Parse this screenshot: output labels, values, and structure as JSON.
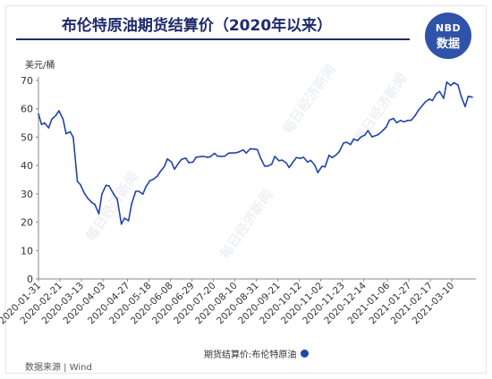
{
  "header": {
    "title": "布伦特原油期货结算价（2020年以来）",
    "logo_top": "NBD",
    "logo_bottom": "数据"
  },
  "unit": "美元/桶",
  "source": "数据来源 | Wind",
  "watermark": "每日经济新闻",
  "colors": {
    "line": "#2244aa",
    "title": "#1e2a6d",
    "logo": "#2f53a8"
  },
  "chart_data": {
    "type": "line",
    "title": "布伦特原油期货结算价（2020年以来）",
    "ylabel": "美元/桶",
    "ylim": [
      0,
      70
    ],
    "yticks": [
      0,
      10,
      20,
      30,
      40,
      50,
      60,
      70
    ],
    "legend": "bottom",
    "grid": false,
    "xtick_labels": [
      "2020-01-31",
      "2020-02-21",
      "2020-03-13",
      "2020-04-03",
      "2020-04-27",
      "2020-05-18",
      "2020-06-08",
      "2020-06-29",
      "2020-07-20",
      "2020-08-10",
      "2020-08-31",
      "2020-09-21",
      "2020-10-12",
      "2020-11-02",
      "2020-11-23",
      "2020-12-14",
      "2021-01-06",
      "2021-01-27",
      "2021-02-17",
      "2021-03-10"
    ],
    "series": [
      {
        "name": "期货结算价:布伦特原油",
        "x": [
          "2020-01-31",
          "2020-02-03",
          "2020-02-06",
          "2020-02-10",
          "2020-02-13",
          "2020-02-17",
          "2020-02-20",
          "2020-02-24",
          "2020-02-27",
          "2020-03-02",
          "2020-03-05",
          "2020-03-09",
          "2020-03-12",
          "2020-03-16",
          "2020-03-19",
          "2020-03-23",
          "2020-03-26",
          "2020-03-30",
          "2020-04-02",
          "2020-04-06",
          "2020-04-09",
          "2020-04-14",
          "2020-04-17",
          "2020-04-21",
          "2020-04-24",
          "2020-04-28",
          "2020-05-01",
          "2020-05-05",
          "2020-05-08",
          "2020-05-12",
          "2020-05-15",
          "2020-05-19",
          "2020-05-22",
          "2020-05-26",
          "2020-05-29",
          "2020-06-02",
          "2020-06-05",
          "2020-06-09",
          "2020-06-12",
          "2020-06-16",
          "2020-06-19",
          "2020-06-23",
          "2020-06-26",
          "2020-06-30",
          "2020-07-03",
          "2020-07-07",
          "2020-07-10",
          "2020-07-14",
          "2020-07-17",
          "2020-07-21",
          "2020-07-24",
          "2020-07-28",
          "2020-07-31",
          "2020-08-04",
          "2020-08-07",
          "2020-08-11",
          "2020-08-14",
          "2020-08-18",
          "2020-08-21",
          "2020-08-25",
          "2020-08-28",
          "2020-09-01",
          "2020-09-04",
          "2020-09-08",
          "2020-09-11",
          "2020-09-15",
          "2020-09-18",
          "2020-09-22",
          "2020-09-25",
          "2020-09-29",
          "2020-10-02",
          "2020-10-06",
          "2020-10-09",
          "2020-10-13",
          "2020-10-16",
          "2020-10-20",
          "2020-10-23",
          "2020-10-27",
          "2020-10-30",
          "2020-11-03",
          "2020-11-06",
          "2020-11-10",
          "2020-11-13",
          "2020-11-17",
          "2020-11-20",
          "2020-11-24",
          "2020-11-27",
          "2020-12-01",
          "2020-12-04",
          "2020-12-08",
          "2020-12-11",
          "2020-12-15",
          "2020-12-18",
          "2020-12-22",
          "2020-12-28",
          "2020-12-31",
          "2021-01-05",
          "2021-01-08",
          "2021-01-12",
          "2021-01-15",
          "2021-01-19",
          "2021-01-22",
          "2021-01-26",
          "2021-01-29",
          "2021-02-02",
          "2021-02-05",
          "2021-02-09",
          "2021-02-12",
          "2021-02-16",
          "2021-02-19",
          "2021-02-23",
          "2021-02-26",
          "2021-03-02",
          "2021-03-05",
          "2021-03-09",
          "2021-03-12",
          "2021-03-16",
          "2021-03-19",
          "2021-03-23",
          "2021-03-26",
          "2021-03-30"
        ],
        "values": [
          58.2,
          54.5,
          55.0,
          53.3,
          56.3,
          57.6,
          59.3,
          56.3,
          51.2,
          51.9,
          49.9,
          34.4,
          33.2,
          30.1,
          28.5,
          27.0,
          26.3,
          23.0,
          29.9,
          33.0,
          32.8,
          29.6,
          28.1,
          19.3,
          21.4,
          20.5,
          26.4,
          30.9,
          30.9,
          29.9,
          32.5,
          34.7,
          35.1,
          36.2,
          37.8,
          39.6,
          42.3,
          41.2,
          38.7,
          40.9,
          42.2,
          42.6,
          41.0,
          41.2,
          42.9,
          43.1,
          43.2,
          42.9,
          43.1,
          44.3,
          43.3,
          43.2,
          43.3,
          44.4,
          44.4,
          44.5,
          44.8,
          45.5,
          44.4,
          45.9,
          45.8,
          45.6,
          42.7,
          39.8,
          39.8,
          40.5,
          43.2,
          41.7,
          41.9,
          41.0,
          39.3,
          41.3,
          42.8,
          42.5,
          42.9,
          41.2,
          41.8,
          40.2,
          37.5,
          39.7,
          39.5,
          43.6,
          42.8,
          43.8,
          44.9,
          47.9,
          48.2,
          47.4,
          49.3,
          48.8,
          50.0,
          50.8,
          52.3,
          50.1,
          50.9,
          51.8,
          53.6,
          56.0,
          56.6,
          55.1,
          55.9,
          55.4,
          55.9,
          55.9,
          57.5,
          59.3,
          61.1,
          62.4,
          63.4,
          62.9,
          65.4,
          66.1,
          63.7,
          69.4,
          68.2,
          69.2,
          68.4,
          64.5,
          60.8,
          64.4,
          64.1
        ]
      }
    ]
  },
  "legend_label": "期货结算价:布伦特原油"
}
